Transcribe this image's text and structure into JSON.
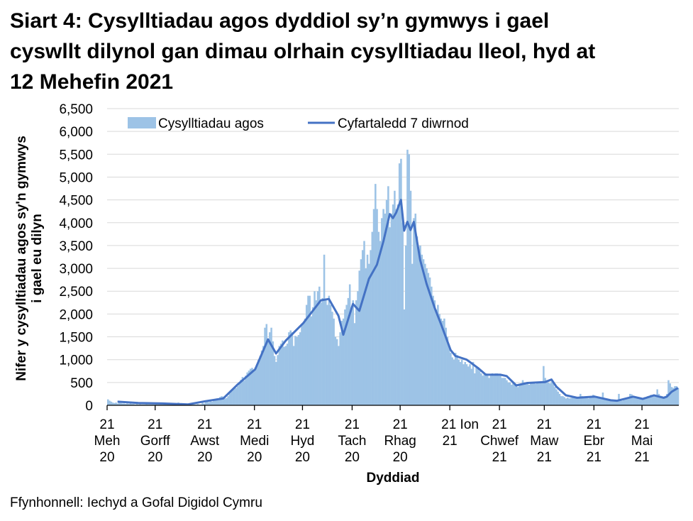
{
  "title_lines": [
    "Siart 4: Cysylltiadau agos dyddiol sy’n gymwys i gael",
    "cyswllt dilynol gan dimau olrhain cysylltiadau lleol, hyd at",
    "12 Mehefin 2021"
  ],
  "source": "Ffynhonnell: Iechyd a Gofal Digidol Cymru",
  "colors": {
    "bars": "#9dc3e6",
    "line": "#4472c4",
    "grid": "#d9d9d9"
  },
  "chart_data": {
    "type": "bar+line",
    "xlabel": "Dyddiad",
    "ylabel_lines": [
      "Nifer y cysylltiadau agos sy'n gymwys",
      "i gael eu dilyn"
    ],
    "ylim": [
      0,
      6500
    ],
    "yticks": [
      0,
      500,
      1000,
      1500,
      2000,
      2500,
      3000,
      3500,
      4000,
      4500,
      5000,
      5500,
      6000,
      6500
    ],
    "ytick_labels": [
      "0",
      "500",
      "1,000",
      "1,500",
      "2,000",
      "2,500",
      "3,000",
      "3,500",
      "4,000",
      "4,500",
      "5,000",
      "5,500",
      "6,000",
      "6,500"
    ],
    "grid": true,
    "legend_position": "top-left",
    "x_start": "2020-06-21",
    "x_end": "2021-06-12",
    "xticks": [
      {
        "date": "2020-06-21",
        "lines": [
          "21",
          "Meh",
          "20"
        ]
      },
      {
        "date": "2020-07-21",
        "lines": [
          "21",
          "Gorff",
          "20"
        ]
      },
      {
        "date": "2020-08-21",
        "lines": [
          "21",
          "Awst",
          "20"
        ]
      },
      {
        "date": "2020-09-21",
        "lines": [
          "21",
          "Medi",
          "20"
        ]
      },
      {
        "date": "2020-10-21",
        "lines": [
          "21",
          "Hyd",
          "20"
        ]
      },
      {
        "date": "2020-11-21",
        "lines": [
          "21",
          "Tach",
          "20"
        ]
      },
      {
        "date": "2020-12-21",
        "lines": [
          "21",
          "Rhag",
          "20"
        ]
      },
      {
        "date": "2021-01-21",
        "lines": [
          "21 Ion",
          "21",
          ""
        ]
      },
      {
        "date": "2021-02-21",
        "lines": [
          "21",
          "Chwef",
          "21"
        ]
      },
      {
        "date": "2021-03-21",
        "lines": [
          "21",
          "Maw",
          "21"
        ]
      },
      {
        "date": "2021-04-21",
        "lines": [
          "21",
          "Ebr",
          "21"
        ]
      },
      {
        "date": "2021-05-21",
        "lines": [
          "21",
          "Mai",
          "21"
        ]
      }
    ],
    "series": [
      {
        "name": "Cysylltiadau agos",
        "type": "bar",
        "values": [
          130,
          100,
          80,
          60,
          50,
          60,
          40,
          70,
          50,
          40,
          40,
          30,
          40,
          30,
          40,
          30,
          30,
          20,
          30,
          20,
          30,
          20,
          20,
          20,
          30,
          20,
          20,
          20,
          20,
          20,
          30,
          20,
          20,
          30,
          20,
          30,
          20,
          20,
          30,
          20,
          20,
          30,
          30,
          40,
          60,
          40,
          40,
          30,
          20,
          40,
          30,
          20,
          20,
          30,
          20,
          20,
          30,
          20,
          20,
          60,
          40,
          80,
          90,
          70,
          120,
          80,
          100,
          120,
          150,
          110,
          180,
          200,
          190,
          150,
          160,
          200,
          260,
          300,
          350,
          400,
          380,
          420,
          480,
          560,
          620,
          540,
          650,
          720,
          760,
          800,
          820,
          760,
          830,
          900,
          1000,
          1080,
          1200,
          1300,
          1700,
          1780,
          1450,
          1600,
          1700,
          1400,
          1080,
          950,
          1100,
          1300,
          1350,
          1420,
          1280,
          1300,
          1350,
          1600,
          1640,
          1600,
          1300,
          1520,
          1500,
          1540,
          1600,
          1780,
          1800,
          1900,
          2200,
          2400,
          2400,
          1950,
          2150,
          2500,
          2300,
          2500,
          2600,
          2250,
          2350,
          3300,
          2300,
          2200,
          2400,
          2200,
          2050,
          1900,
          1500,
          1450,
          1300,
          1600,
          1850,
          1900,
          2100,
          2200,
          2350,
          2650,
          2100,
          2300,
          1800,
          2300,
          2500,
          2950,
          3200,
          3400,
          3600,
          3000,
          3300,
          3100,
          3400,
          3800,
          4300,
          4850,
          4300,
          3800,
          3600,
          4100,
          4300,
          4200,
          4500,
          4800,
          3900,
          4200,
          4400,
          4700,
          4300,
          4400,
          5300,
          5400,
          4000,
          2100,
          3500,
          5600,
          5500,
          4700,
          3100,
          4100,
          4200,
          3700,
          3400,
          3500,
          3300,
          3200,
          3100,
          3000,
          2900,
          2800,
          2600,
          2400,
          2300,
          2100,
          2200,
          2000,
          1900,
          1850,
          1900,
          1700,
          1500,
          1300,
          1150,
          1050,
          1000,
          1150,
          1100,
          1000,
          950,
          1000,
          900,
          950,
          900,
          850,
          900,
          800,
          950,
          700,
          850,
          800,
          750,
          700,
          650,
          700,
          700,
          650,
          600,
          650,
          700,
          650,
          700,
          700,
          650,
          650,
          600,
          600,
          600,
          550,
          500,
          500,
          450,
          500,
          450,
          420,
          400,
          450,
          480,
          550,
          500,
          460,
          480,
          450,
          500,
          480,
          500,
          470,
          520,
          480,
          500,
          520,
          860,
          600,
          550,
          500,
          480,
          520,
          500,
          400,
          350,
          300,
          250,
          200,
          200,
          180,
          150,
          170,
          150,
          160,
          200,
          180,
          160,
          150,
          170,
          250,
          200,
          180,
          170,
          160,
          150,
          200,
          190,
          230,
          180,
          160,
          170,
          150,
          180,
          280,
          150,
          130,
          140,
          120,
          120,
          100,
          110,
          90,
          100,
          250,
          110,
          100,
          130,
          140,
          150,
          160,
          250,
          240,
          180,
          190,
          170,
          150,
          160,
          130,
          150,
          180,
          170,
          200,
          210,
          230,
          200,
          220,
          220,
          350,
          250,
          210,
          200,
          180,
          200,
          250,
          550,
          480,
          400,
          380,
          420,
          420,
          380
        ]
      },
      {
        "name": "Cyfartaledd 7 diwrnod",
        "type": "line",
        "points": [
          [
            "2020-06-27",
            80
          ],
          [
            "2020-07-10",
            50
          ],
          [
            "2020-07-25",
            40
          ],
          [
            "2020-08-10",
            20
          ],
          [
            "2020-08-21",
            90
          ],
          [
            "2020-09-01",
            150
          ],
          [
            "2020-09-10",
            455
          ],
          [
            "2020-09-21",
            790
          ],
          [
            "2020-09-29",
            1445
          ],
          [
            "2020-10-04",
            1135
          ],
          [
            "2020-10-10",
            1415
          ],
          [
            "2020-10-21",
            1800
          ],
          [
            "2020-11-01",
            2300
          ],
          [
            "2020-11-06",
            2330
          ],
          [
            "2020-11-12",
            1960
          ],
          [
            "2020-11-15",
            1545
          ],
          [
            "2020-11-21",
            2220
          ],
          [
            "2020-11-25",
            2070
          ],
          [
            "2020-12-01",
            2770
          ],
          [
            "2020-12-06",
            3080
          ],
          [
            "2020-12-10",
            3590
          ],
          [
            "2020-12-14",
            4190
          ],
          [
            "2020-12-16",
            4100
          ],
          [
            "2020-12-18",
            4220
          ],
          [
            "2020-12-21",
            4500
          ],
          [
            "2020-12-23",
            3825
          ],
          [
            "2020-12-25",
            4020
          ],
          [
            "2020-12-27",
            3840
          ],
          [
            "2020-12-29",
            4020
          ],
          [
            "2021-01-02",
            3180
          ],
          [
            "2021-01-06",
            2660
          ],
          [
            "2021-01-11",
            2140
          ],
          [
            "2021-01-15",
            1780
          ],
          [
            "2021-01-21",
            1210
          ],
          [
            "2021-01-24",
            1080
          ],
          [
            "2021-01-31",
            1000
          ],
          [
            "2021-02-07",
            820
          ],
          [
            "2021-02-12",
            670
          ],
          [
            "2021-02-21",
            670
          ],
          [
            "2021-02-25",
            640
          ],
          [
            "2021-03-03",
            435
          ],
          [
            "2021-03-10",
            490
          ],
          [
            "2021-03-21",
            510
          ],
          [
            "2021-03-25",
            565
          ],
          [
            "2021-03-28",
            410
          ],
          [
            "2021-04-03",
            220
          ],
          [
            "2021-04-10",
            165
          ],
          [
            "2021-04-21",
            190
          ],
          [
            "2021-05-01",
            110
          ],
          [
            "2021-05-05",
            100
          ],
          [
            "2021-05-15",
            190
          ],
          [
            "2021-05-21",
            140
          ],
          [
            "2021-05-28",
            220
          ],
          [
            "2021-06-03",
            165
          ],
          [
            "2021-06-05",
            190
          ],
          [
            "2021-06-08",
            295
          ],
          [
            "2021-06-12",
            380
          ]
        ]
      }
    ]
  }
}
